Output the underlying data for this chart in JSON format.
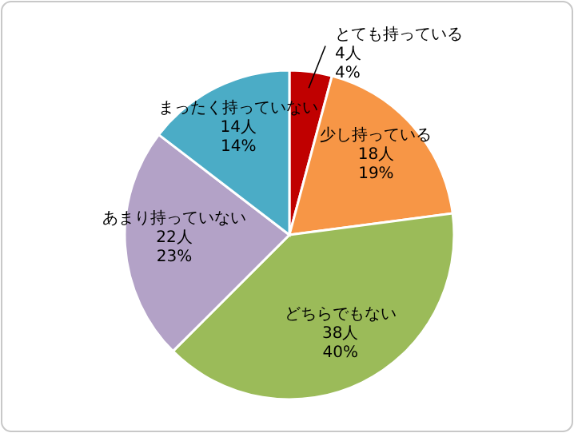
{
  "chart_data": {
    "type": "pie",
    "categories": [
      "とても持っている",
      "少し持っている",
      "どちらでもない",
      "あまり持っていない",
      "まったく持っていない"
    ],
    "values": [
      4,
      18,
      38,
      22,
      14
    ],
    "value_labels": [
      "4人\n4%",
      "18人\n19%",
      "38人\n40%",
      "22人\n23%",
      "14人\n14%"
    ],
    "colors": [
      "#c00000",
      "#f79646",
      "#9bbb59",
      "#b3a2c7",
      "#4bacc6"
    ]
  }
}
